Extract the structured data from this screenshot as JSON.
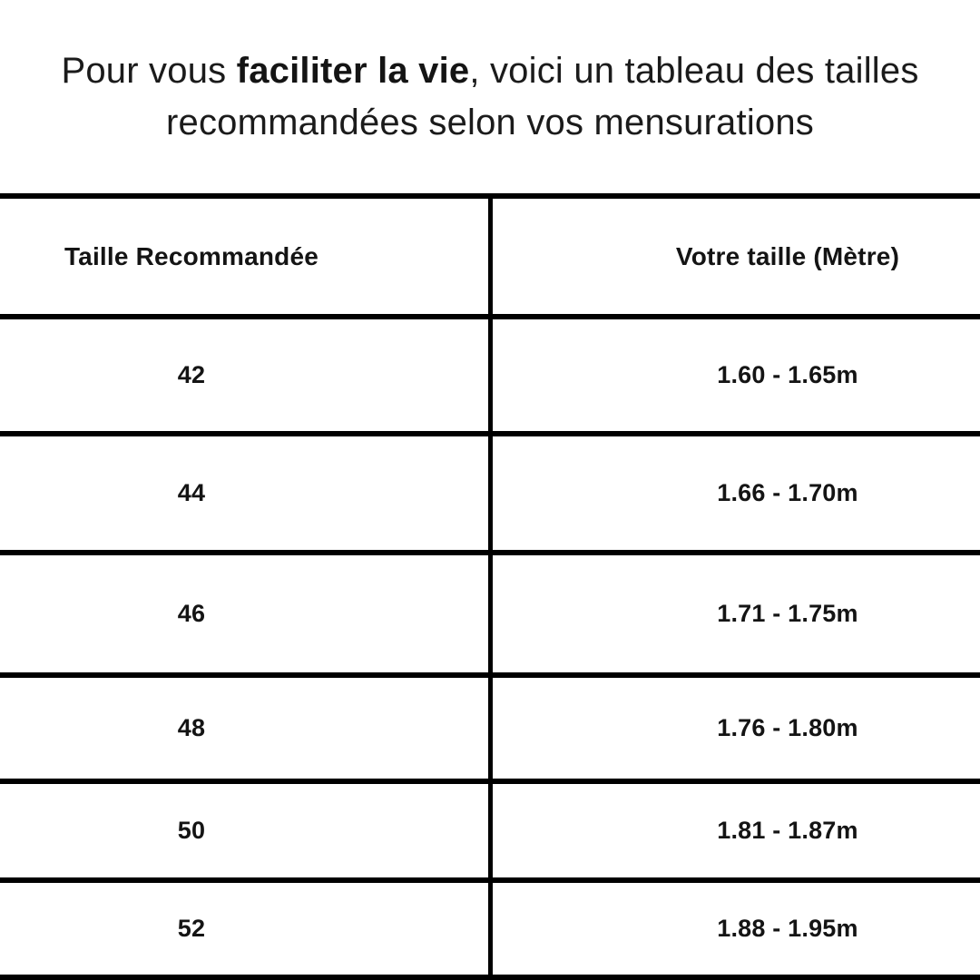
{
  "title": {
    "prefix": "Pour vous ",
    "bold": "faciliter la vie",
    "suffix": ", voici un tableau des tailles recommandées selon vos mensurations"
  },
  "table": {
    "headers": [
      "Taille Recommandée",
      "Votre taille (Mètre)"
    ],
    "rows": [
      {
        "size": "42",
        "height": "1.60 - 1.65m"
      },
      {
        "size": "44",
        "height": "1.66 - 1.70m"
      },
      {
        "size": "46",
        "height": "1.71 - 1.75m"
      },
      {
        "size": "48",
        "height": "1.76 - 1.80m"
      },
      {
        "size": "50",
        "height": "1.81 - 1.87m"
      },
      {
        "size": "52",
        "height": "1.88 - 1.95m"
      }
    ]
  },
  "colors": {
    "background": "#ffffff",
    "text": "#141414",
    "line": "#000000"
  }
}
